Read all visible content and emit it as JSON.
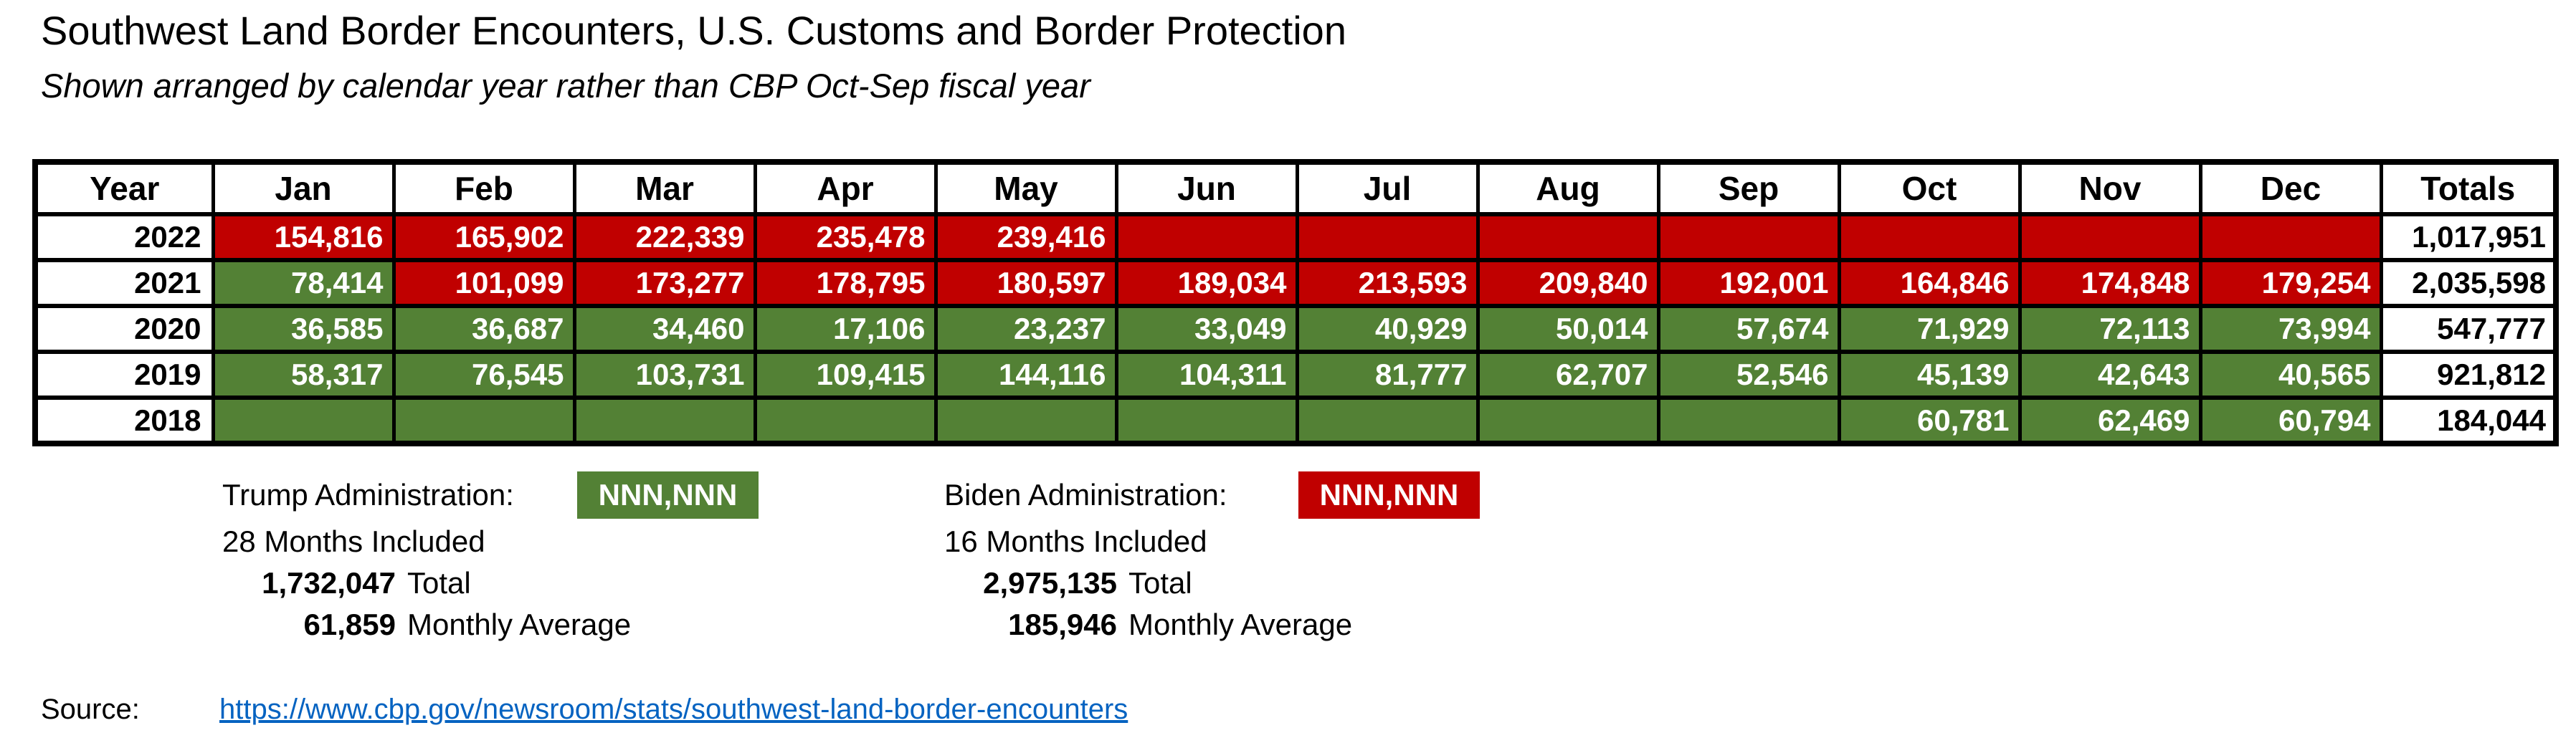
{
  "title": "Southwest Land Border Encounters, U.S. Customs and Border Protection",
  "subtitle": "Shown arranged by calendar year rather than CBP Oct-Sep fiscal year",
  "colors": {
    "trump_green": "#538135",
    "biden_red": "#C00000",
    "link_blue": "#0563C1"
  },
  "chart_data": {
    "type": "table",
    "title": "Southwest Land Border Encounters, U.S. Customs and Border Protection",
    "columns": [
      "Year",
      "Jan",
      "Feb",
      "Mar",
      "Apr",
      "May",
      "Jun",
      "Jul",
      "Aug",
      "Sep",
      "Oct",
      "Nov",
      "Dec",
      "Totals"
    ],
    "rows": [
      {
        "year": "2022",
        "total": "1,017,951",
        "cells": [
          {
            "v": "154,816",
            "admin": "biden"
          },
          {
            "v": "165,902",
            "admin": "biden"
          },
          {
            "v": "222,339",
            "admin": "biden"
          },
          {
            "v": "235,478",
            "admin": "biden"
          },
          {
            "v": "239,416",
            "admin": "biden"
          },
          {
            "v": "",
            "admin": "biden"
          },
          {
            "v": "",
            "admin": "biden"
          },
          {
            "v": "",
            "admin": "biden"
          },
          {
            "v": "",
            "admin": "biden"
          },
          {
            "v": "",
            "admin": "biden"
          },
          {
            "v": "",
            "admin": "biden"
          },
          {
            "v": "",
            "admin": "biden"
          }
        ]
      },
      {
        "year": "2021",
        "total": "2,035,598",
        "cells": [
          {
            "v": "78,414",
            "admin": "trump"
          },
          {
            "v": "101,099",
            "admin": "biden"
          },
          {
            "v": "173,277",
            "admin": "biden"
          },
          {
            "v": "178,795",
            "admin": "biden"
          },
          {
            "v": "180,597",
            "admin": "biden"
          },
          {
            "v": "189,034",
            "admin": "biden"
          },
          {
            "v": "213,593",
            "admin": "biden"
          },
          {
            "v": "209,840",
            "admin": "biden"
          },
          {
            "v": "192,001",
            "admin": "biden"
          },
          {
            "v": "164,846",
            "admin": "biden"
          },
          {
            "v": "174,848",
            "admin": "biden"
          },
          {
            "v": "179,254",
            "admin": "biden"
          }
        ]
      },
      {
        "year": "2020",
        "total": "547,777",
        "cells": [
          {
            "v": "36,585",
            "admin": "trump"
          },
          {
            "v": "36,687",
            "admin": "trump"
          },
          {
            "v": "34,460",
            "admin": "trump"
          },
          {
            "v": "17,106",
            "admin": "trump"
          },
          {
            "v": "23,237",
            "admin": "trump"
          },
          {
            "v": "33,049",
            "admin": "trump"
          },
          {
            "v": "40,929",
            "admin": "trump"
          },
          {
            "v": "50,014",
            "admin": "trump"
          },
          {
            "v": "57,674",
            "admin": "trump"
          },
          {
            "v": "71,929",
            "admin": "trump"
          },
          {
            "v": "72,113",
            "admin": "trump"
          },
          {
            "v": "73,994",
            "admin": "trump"
          }
        ]
      },
      {
        "year": "2019",
        "total": "921,812",
        "cells": [
          {
            "v": "58,317",
            "admin": "trump"
          },
          {
            "v": "76,545",
            "admin": "trump"
          },
          {
            "v": "103,731",
            "admin": "trump"
          },
          {
            "v": "109,415",
            "admin": "trump"
          },
          {
            "v": "144,116",
            "admin": "trump"
          },
          {
            "v": "104,311",
            "admin": "trump"
          },
          {
            "v": "81,777",
            "admin": "trump"
          },
          {
            "v": "62,707",
            "admin": "trump"
          },
          {
            "v": "52,546",
            "admin": "trump"
          },
          {
            "v": "45,139",
            "admin": "trump"
          },
          {
            "v": "42,643",
            "admin": "trump"
          },
          {
            "v": "40,565",
            "admin": "trump"
          }
        ]
      },
      {
        "year": "2018",
        "total": "184,044",
        "cells": [
          {
            "v": "",
            "admin": "trump"
          },
          {
            "v": "",
            "admin": "trump"
          },
          {
            "v": "",
            "admin": "trump"
          },
          {
            "v": "",
            "admin": "trump"
          },
          {
            "v": "",
            "admin": "trump"
          },
          {
            "v": "",
            "admin": "trump"
          },
          {
            "v": "",
            "admin": "trump"
          },
          {
            "v": "",
            "admin": "trump"
          },
          {
            "v": "",
            "admin": "trump"
          },
          {
            "v": "60,781",
            "admin": "trump"
          },
          {
            "v": "62,469",
            "admin": "trump"
          },
          {
            "v": "60,794",
            "admin": "trump"
          }
        ]
      }
    ]
  },
  "legend": {
    "trump": {
      "label": "Trump Administration:",
      "swatch_label": "NNN,NNN",
      "months_included": "28 Months Included",
      "total_value": "1,732,047",
      "total_label": "Total",
      "avg_value": "61,859",
      "avg_label": "Monthly Average"
    },
    "biden": {
      "label": "Biden Administration:",
      "swatch_label": "NNN,NNN",
      "months_included": "16 Months Included",
      "total_value": "2,975,135",
      "total_label": "Total",
      "avg_value": "185,946",
      "avg_label": "Monthly Average"
    }
  },
  "source": {
    "label": "Source:",
    "link_text": "https://www.cbp.gov/newsroom/stats/southwest-land-border-encounters"
  }
}
